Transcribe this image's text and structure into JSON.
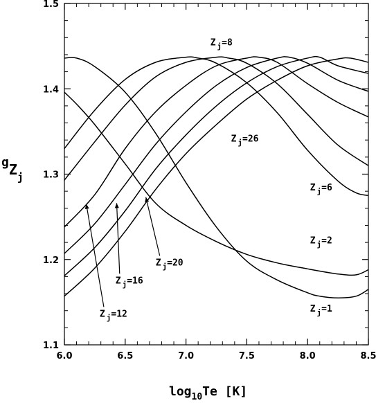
{
  "chart_data": {
    "type": "line",
    "xlim": [
      6.0,
      8.5
    ],
    "ylim": [
      1.1,
      1.5
    ],
    "grid": false,
    "x_ticks": [
      "6.0",
      "6.5",
      "7.0",
      "7.5",
      "8.0",
      "8.5"
    ],
    "y_ticks": [
      "1.1",
      "1.2",
      "1.3",
      "1.4",
      "1.5"
    ],
    "xlabel": {
      "pre": "log",
      "sub": "10",
      "post": "Te [K]"
    },
    "ylabel": {
      "main": "g",
      "sub": "Z",
      "subsub": "j"
    },
    "series": [
      {
        "name": "Z_j=1",
        "x": [
          6.0,
          6.1,
          6.25,
          6.5,
          6.75,
          7.0,
          7.25,
          7.5,
          7.75,
          8.0,
          8.1,
          8.25,
          8.4,
          8.5
        ],
        "y": [
          1.436,
          1.436,
          1.426,
          1.396,
          1.348,
          1.29,
          1.238,
          1.198,
          1.176,
          1.161,
          1.157,
          1.155,
          1.157,
          1.165
        ]
      },
      {
        "name": "Z_j=2",
        "x": [
          6.0,
          6.1,
          6.25,
          6.5,
          6.75,
          7.0,
          7.25,
          7.5,
          7.75,
          8.0,
          8.25,
          8.4,
          8.5
        ],
        "y": [
          1.396,
          1.382,
          1.358,
          1.312,
          1.266,
          1.24,
          1.221,
          1.206,
          1.196,
          1.189,
          1.183,
          1.182,
          1.188
        ]
      },
      {
        "name": "Z_j=6",
        "x": [
          6.0,
          6.25,
          6.5,
          6.75,
          7.0,
          7.1,
          7.25,
          7.5,
          7.75,
          8.0,
          8.25,
          8.4,
          8.5
        ],
        "y": [
          1.33,
          1.375,
          1.411,
          1.431,
          1.437,
          1.436,
          1.43,
          1.407,
          1.372,
          1.328,
          1.292,
          1.278,
          1.275
        ]
      },
      {
        "name": "Z_j=8",
        "x": [
          6.0,
          6.25,
          6.5,
          6.75,
          7.0,
          7.25,
          7.35,
          7.5,
          7.75,
          8.0,
          8.25,
          8.5
        ],
        "y": [
          1.293,
          1.338,
          1.381,
          1.414,
          1.431,
          1.437,
          1.436,
          1.43,
          1.406,
          1.37,
          1.334,
          1.31
        ]
      },
      {
        "name": "Z_j=12",
        "x": [
          6.0,
          6.25,
          6.5,
          6.75,
          7.0,
          7.25,
          7.5,
          7.6,
          7.75,
          8.0,
          8.25,
          8.5
        ],
        "y": [
          1.238,
          1.276,
          1.33,
          1.373,
          1.404,
          1.427,
          1.436,
          1.437,
          1.431,
          1.406,
          1.384,
          1.367
        ]
      },
      {
        "name": "Z_j=16",
        "x": [
          6.0,
          6.25,
          6.5,
          6.75,
          7.0,
          7.25,
          7.5,
          7.75,
          7.85,
          8.0,
          8.25,
          8.5
        ],
        "y": [
          1.207,
          1.242,
          1.288,
          1.335,
          1.373,
          1.404,
          1.425,
          1.436,
          1.437,
          1.43,
          1.41,
          1.397
        ]
      },
      {
        "name": "Z_j=20",
        "x": [
          6.0,
          6.25,
          6.5,
          6.75,
          7.0,
          7.25,
          7.5,
          7.75,
          8.0,
          8.1,
          8.25,
          8.5
        ],
        "y": [
          1.181,
          1.214,
          1.257,
          1.306,
          1.346,
          1.38,
          1.407,
          1.426,
          1.436,
          1.437,
          1.427,
          1.418
        ]
      },
      {
        "name": "Z_j=26",
        "x": [
          6.0,
          6.25,
          6.5,
          6.75,
          7.0,
          7.25,
          7.5,
          7.75,
          8.0,
          8.25,
          8.35,
          8.5
        ],
        "y": [
          1.157,
          1.19,
          1.233,
          1.282,
          1.324,
          1.358,
          1.388,
          1.41,
          1.427,
          1.435,
          1.436,
          1.431
        ]
      }
    ],
    "annotations": [
      {
        "id": "z8",
        "pre": "Z",
        "sub": "j",
        "post": "=8",
        "x": 7.2,
        "y": 1.451,
        "arrow": false
      },
      {
        "id": "z26",
        "pre": "Z",
        "sub": "j",
        "post": "=26",
        "x": 7.37,
        "y": 1.338,
        "arrow": false
      },
      {
        "id": "z6",
        "pre": "Z",
        "sub": "j",
        "post": "=6",
        "x": 8.02,
        "y": 1.281,
        "arrow": false
      },
      {
        "id": "z2",
        "pre": "Z",
        "sub": "j",
        "post": "=2",
        "x": 8.02,
        "y": 1.219,
        "arrow": false
      },
      {
        "id": "z1",
        "pre": "Z",
        "sub": "j",
        "post": "=1",
        "x": 8.02,
        "y": 1.139,
        "arrow": false
      },
      {
        "id": "z20",
        "pre": "Z",
        "sub": "j",
        "post": "=20",
        "x": 6.75,
        "y": 1.193,
        "arrow": true,
        "ax": 6.67,
        "ay": 1.273
      },
      {
        "id": "z16",
        "pre": "Z",
        "sub": "j",
        "post": "=16",
        "x": 6.42,
        "y": 1.172,
        "arrow": true,
        "ax": 6.43,
        "ay": 1.266
      },
      {
        "id": "z12",
        "pre": "Z",
        "sub": "j",
        "post": "=12",
        "x": 6.29,
        "y": 1.133,
        "arrow": true,
        "ax": 6.18,
        "ay": 1.265
      }
    ]
  }
}
